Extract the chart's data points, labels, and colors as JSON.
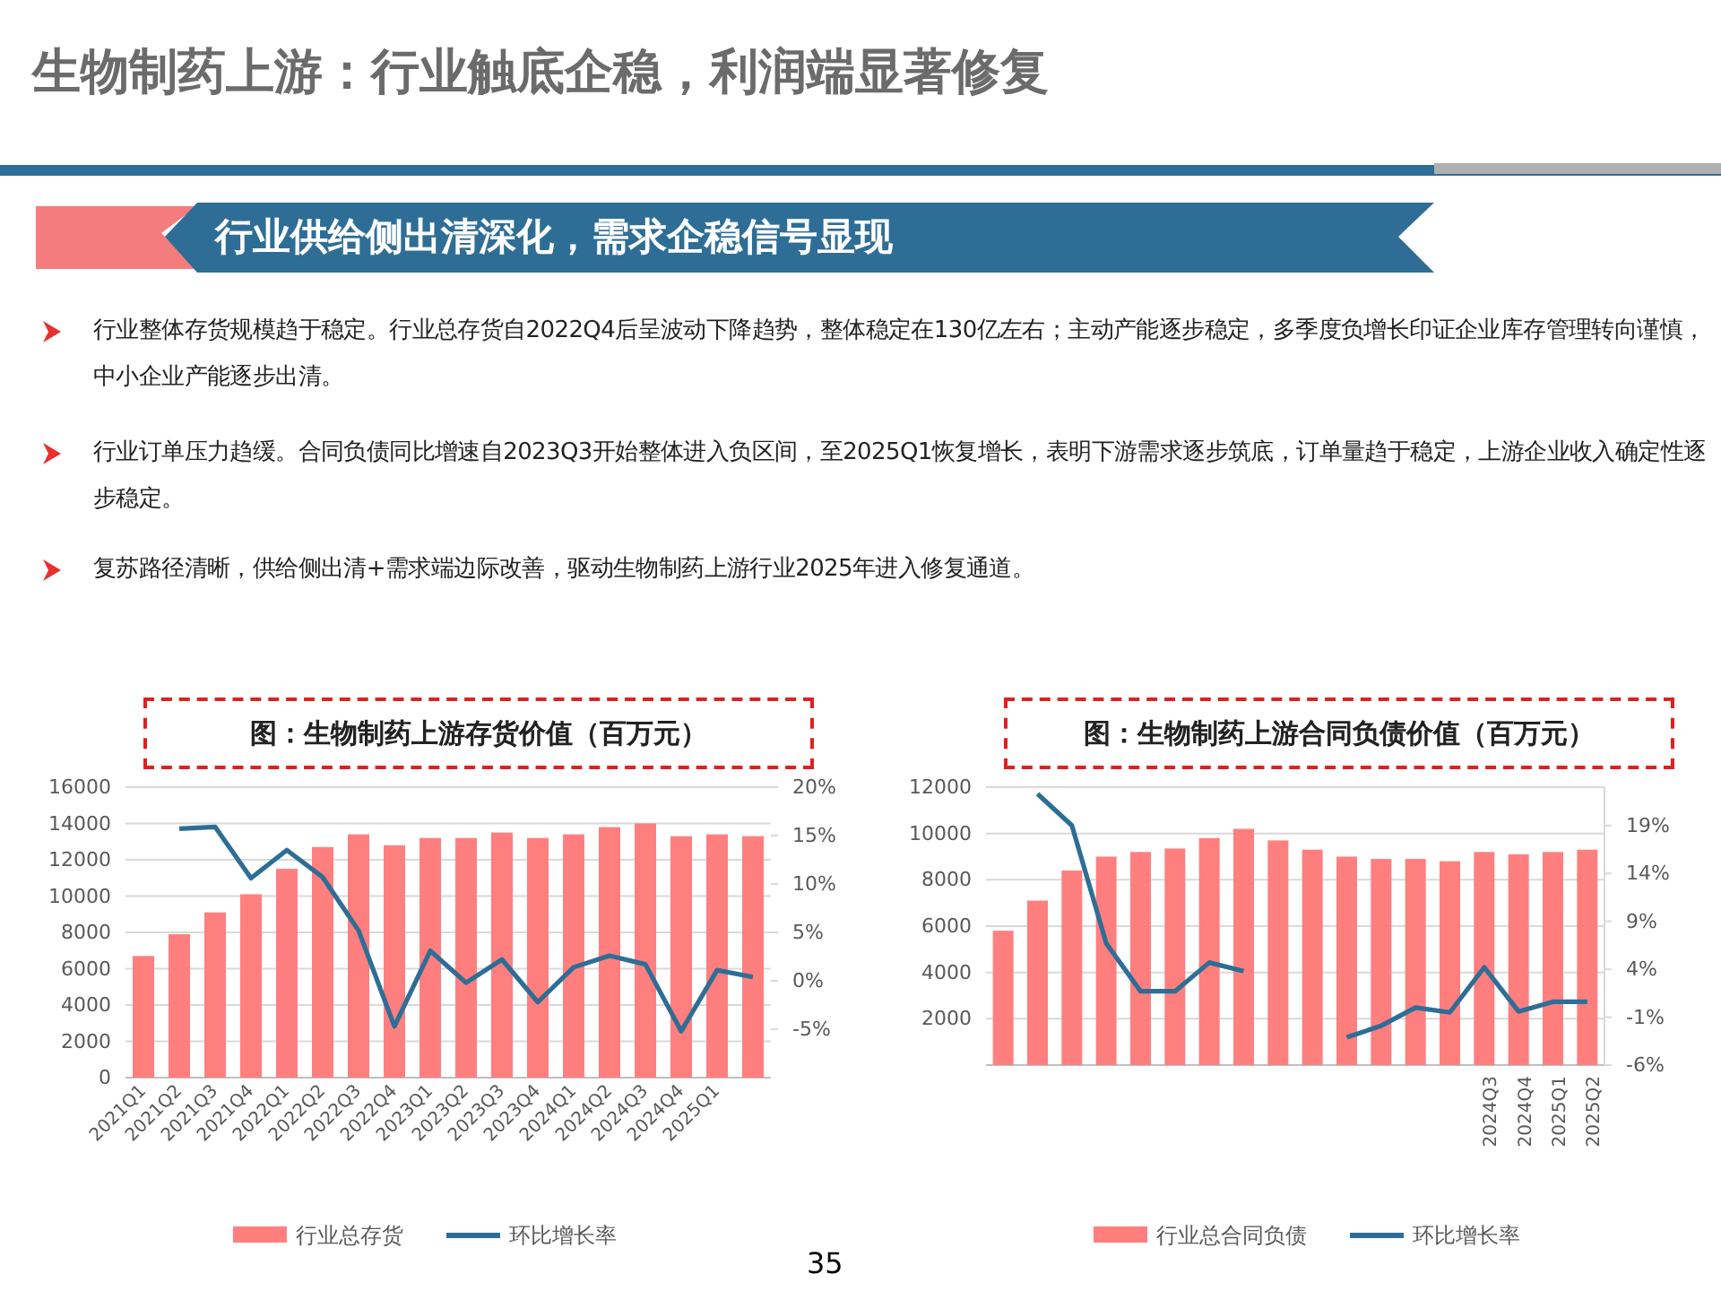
{
  "chart_data": [
    {
      "type": "other",
      "title": "生物制药上游：行业触底企稳，利润端显著修复",
      "subtitle": "行业供给侧出清深化，需求企稳信号显现",
      "annotations": [
        "行业整体存货规模趋于稳定。行业总存货自2022Q4后呈波动下降趋势，整体稳定在130亿左右；主动产能逐步稳定，多季度负增长印证企业库存管理转向谨慎，中小企业产能逐步出清。",
        "行业订单压力趋缓。合同负债同比增速自2023Q3开始整体进入负区间，至2025Q1恢复增长，表明下游需求逐步筑底，订单量趋于稳定，上游企业收入确定性逐步稳定。",
        "复苏路径清晰，供给侧出清+需求端边际改善，驱动生物制药上游行业2025年进入修复通道。",
        "35"
      ]
    },
    {
      "type": "bar",
      "title": "图：生物制药上游存货价值（百万元）",
      "categories": [
        "2021Q1",
        "2021Q2",
        "2021Q3",
        "2021Q4",
        "2022Q1",
        "2022Q2",
        "2022Q3",
        "2022Q4",
        "2023Q1",
        "2023Q2",
        "2023Q3",
        "2023Q4",
        "2024Q1",
        "2024Q2",
        "2024Q3",
        "2024Q4",
        "2025Q1",
        null
      ],
      "series": [
        {
          "name": "行业总存货",
          "color": "#ff7f7f",
          "values": [
            6700,
            7900,
            9100,
            10100,
            11500,
            12700,
            13400,
            12800,
            13200,
            13200,
            13500,
            13200,
            13400,
            13800,
            14000,
            13300,
            13400,
            13300
          ]
        },
        {
          "name": "环比增长率",
          "type": "line",
          "axis": "y2",
          "color": "#2e6e96",
          "values": [
            null,
            15.7,
            15.9,
            10.6,
            13.5,
            10.7,
            5.2,
            -4.7,
            3.1,
            -0.2,
            2.2,
            -2.2,
            1.4,
            2.6,
            1.7,
            -5.2,
            1.1,
            0.4
          ]
        }
      ],
      "ylim": [
        0,
        16000
      ],
      "yticks": [
        0,
        2000,
        4000,
        6000,
        8000,
        10000,
        12000,
        14000,
        16000
      ],
      "y2lim": [
        -10,
        20
      ],
      "y2ticks": [
        {
          "value": -5,
          "label": "-5%"
        },
        {
          "value": 0,
          "label": "0%"
        },
        {
          "value": 5,
          "label": "5%"
        },
        {
          "value": 10,
          "label": "10%"
        },
        {
          "value": 15,
          "label": "15%"
        },
        {
          "value": 20,
          "label": "20%"
        }
      ],
      "grid": "y",
      "legend": "bottom"
    },
    {
      "type": "bar",
      "title": "图：生物制药上游合同负债价值（百万元）",
      "categories": [
        null,
        null,
        null,
        null,
        null,
        null,
        null,
        null,
        null,
        null,
        null,
        null,
        null,
        null,
        "2024Q3",
        "2024Q4",
        "2025Q1",
        "2025Q2"
      ],
      "series": [
        {
          "name": "行业总合同负债",
          "color": "#ff7f7f",
          "values": [
            5800,
            7100,
            8400,
            9000,
            9200,
            9350,
            9800,
            10200,
            9700,
            9300,
            9000,
            8900,
            8900,
            8800,
            9200,
            9100,
            9200,
            9300
          ]
        },
        {
          "name": "环比增长率",
          "type": "line",
          "axis": "y2",
          "color": "#2e6e96",
          "values": [
            null,
            22.3,
            19.0,
            6.7,
            1.7,
            1.7,
            4.7,
            3.8,
            null,
            null,
            -3.1,
            -1.9,
            0,
            -0.5,
            4.2,
            -0.4,
            0.6,
            0.6
          ]
        }
      ],
      "ylim": [
        0,
        12000
      ],
      "yticks": [
        2000,
        4000,
        6000,
        8000,
        10000,
        12000
      ],
      "y2lim": [
        -6,
        23
      ],
      "y2ticks": [
        {
          "value": -6,
          "label": "-6%"
        },
        {
          "value": -1,
          "label": "-1%"
        },
        {
          "value": 4,
          "label": "4%"
        },
        {
          "value": 9,
          "label": "9%"
        },
        {
          "value": 14,
          "label": "14%"
        },
        {
          "value": 19,
          "label": "19%"
        }
      ],
      "grid": "y",
      "legend": "bottom"
    }
  ]
}
